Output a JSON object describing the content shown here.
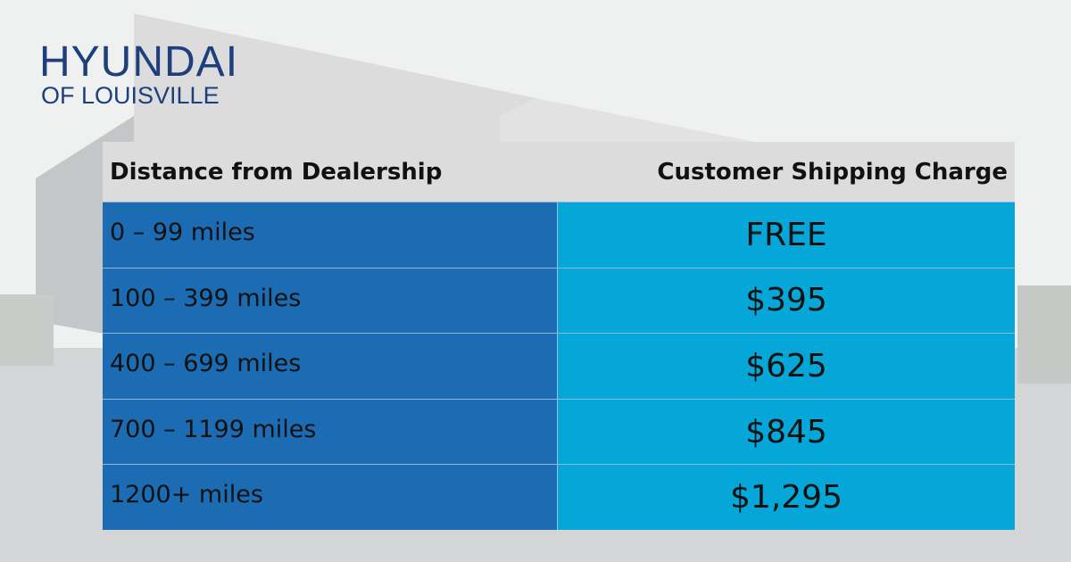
{
  "logo": {
    "line1": "HYUNDAI",
    "line2": "OF LOUISVILLE"
  },
  "table": {
    "header": [
      "Distance from Dealership",
      "Customer Shipping Charge"
    ],
    "rows": [
      [
        "0 – 99 miles",
        "FREE"
      ],
      [
        "100 – 399 miles",
        "$395"
      ],
      [
        "400 – 699 miles",
        "$625"
      ],
      [
        "700 – 1199 miles",
        "$845"
      ],
      [
        "1200+ miles",
        "$1,295"
      ]
    ]
  }
}
